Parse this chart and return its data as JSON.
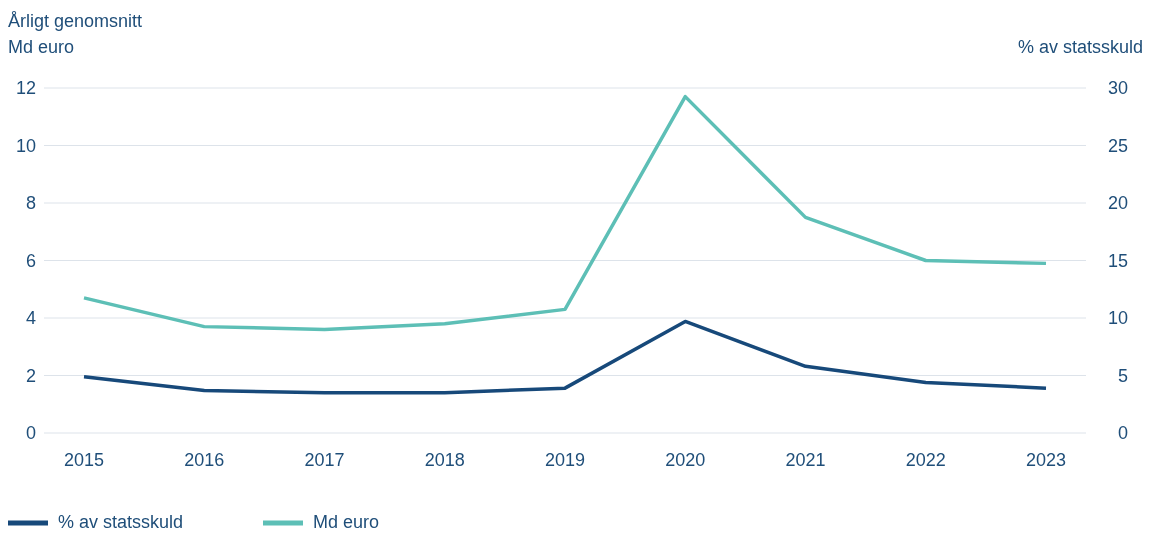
{
  "chart_data": {
    "type": "line",
    "title": "Årligt genomsnitt",
    "ylabel": "Md euro",
    "y2label": "% av statsskuld",
    "categories": [
      "2015",
      "2016",
      "2017",
      "2018",
      "2019",
      "2020",
      "2021",
      "2022",
      "2023"
    ],
    "series": [
      {
        "name": "Md euro",
        "color": "#5dbfb6",
        "values": [
          4.7,
          3.7,
          3.6,
          3.8,
          4.3,
          11.7,
          7.5,
          6.0,
          5.9
        ]
      },
      {
        "name": "% av statsskuld",
        "color": "#17497a",
        "axis": "y2",
        "values": [
          4.9,
          3.7,
          3.5,
          3.5,
          3.9,
          9.7,
          5.8,
          4.4,
          3.9
        ]
      }
    ],
    "ylim": [
      0,
      12
    ],
    "yticks": [
      0,
      2,
      4,
      6,
      8,
      10,
      12
    ],
    "y2lim": [
      0,
      30
    ],
    "y2ticks": [
      0,
      5,
      10,
      15,
      20,
      25,
      30
    ],
    "grid": "y",
    "legend": "bottom left",
    "marker": "none",
    "line_style": "solid"
  }
}
